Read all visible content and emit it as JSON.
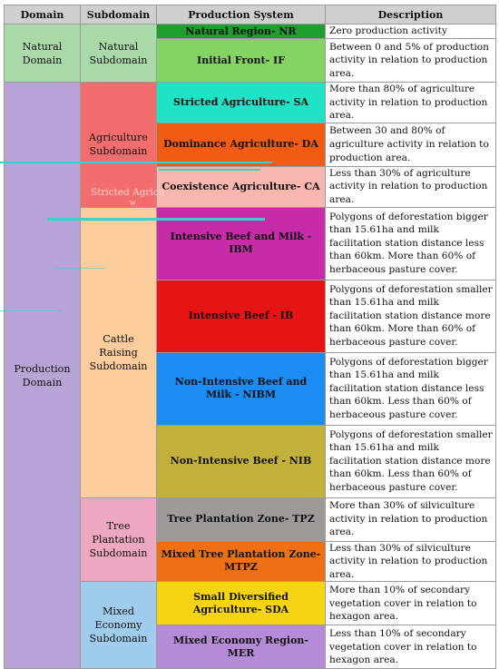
{
  "headers": [
    "Domain",
    "Subdomain",
    "Production System",
    "Description"
  ],
  "domains": [
    {
      "name": "Natural Domain",
      "color": "#a9d8a9"
    },
    {
      "name": "Production Domain",
      "color": "#b7a3d6"
    }
  ],
  "subdomains": [
    {
      "name": "Natural Subdomain",
      "color": "#a9d8a9"
    },
    {
      "name": "Agriculture Subdomain",
      "color": "#f26d6d"
    },
    {
      "name": "Cattle Raising Subdomain",
      "color": "#fbcc9c"
    },
    {
      "name": "Tree Plantation Subdomain",
      "color": "#eca7c2"
    },
    {
      "name": "Mixed Economy Subdomain",
      "color": "#9fcbed"
    }
  ],
  "rows": [
    {
      "system": "Natural Region- NR",
      "color": "#1f9e2f",
      "description": "Zero production activity"
    },
    {
      "system": "Initial Front- IF",
      "color": "#85d364",
      "description": "Between 0 and 5% of production activity in relation to production area."
    },
    {
      "system": "Stricted Agriculture- SA",
      "color": "#1fe3c4",
      "description": "More than 80% of agriculture activity in relation to production area."
    },
    {
      "system": "Dominance Agriculture- DA",
      "color": "#f25b14",
      "description": "Between 30 and 80% of agriculture activity in relation to production area."
    },
    {
      "system": "Coexistence Agriculture- CA",
      "color": "#f9b7b0",
      "description": "Less than 30% of agriculture activity in relation to production area."
    },
    {
      "system": "Intensive Beef and Milk - IBM",
      "color": "#c62ca7",
      "description": "Polygons of deforestation bigger than 15.61ha and milk facilitation station distance less than 60km. More than 60% of herbaceous pasture cover."
    },
    {
      "system": "Intensive Beef - IB",
      "color": "#e51515",
      "description": "Polygons of deforestation smaller than 15.61ha and milk facilitation station distance more than 60km. More than 60% of herbaceous pasture cover."
    },
    {
      "system": "Non-Intensive Beef and Milk - NIBM",
      "color": "#1a8cf2",
      "description": "Polygons of deforestation bigger than 15.61ha and milk facilitation station distance less than 60km. Less than 60% of herbaceous pasture cover."
    },
    {
      "system": "Non-Intensive Beef - NIB",
      "color": "#c1b13c",
      "description": "Polygons of deforestation smaller than 15.61ha and milk facilitation station distance more than 60km. Less than 60% of herbaceous pasture cover."
    },
    {
      "system": "Tree Plantation Zone- TPZ",
      "color": "#9e9996",
      "description": "More than 30% of silviculture activity in relation to production area."
    },
    {
      "system": "Mixed Tree Plantation Zone- MTPZ",
      "color": "#ee6f14",
      "description": "Less than 30% of silviculture activity in relation to production area."
    },
    {
      "system": "Small Diversified Agriculture- SDA",
      "color": "#f6d412",
      "description": "More than 10% of secondary vegetation cover in relation to hexagon area."
    },
    {
      "system": "Mixed Economy Region- MER",
      "color": "#b58ad6",
      "description": "Less than 10% of secondary vegetation cover in relation to hexagon area."
    }
  ],
  "artifacts": {
    "faded_label": "Stricted Agricu",
    "faded_mark": "w",
    "line_color": "#38d3d0"
  }
}
